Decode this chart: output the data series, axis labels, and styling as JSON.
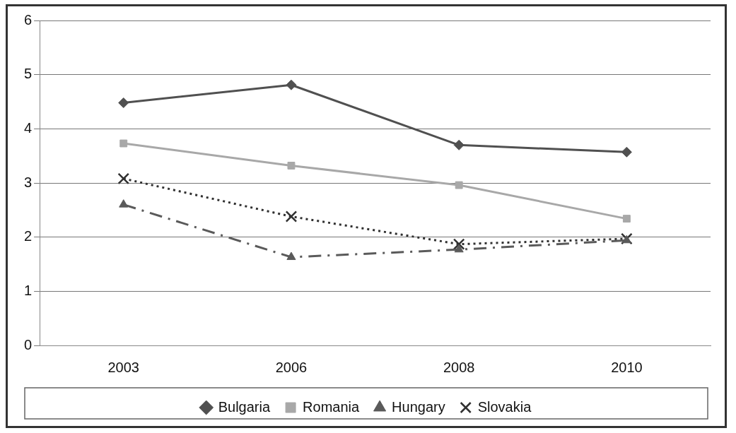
{
  "chart_data": {
    "type": "line",
    "categories": [
      "2003",
      "2006",
      "2008",
      "2010"
    ],
    "series": [
      {
        "name": "Bulgaria",
        "color": "#505050",
        "values": [
          4.48,
          4.81,
          3.7,
          3.57
        ],
        "marker": "diamond",
        "line_style": "solid"
      },
      {
        "name": "Romania",
        "color": "#a8a8a8",
        "values": [
          3.73,
          3.32,
          2.96,
          2.34
        ],
        "marker": "square",
        "line_style": "solid"
      },
      {
        "name": "Hungary",
        "color": "#5a5a5a",
        "values": [
          2.6,
          1.63,
          1.77,
          1.94
        ],
        "marker": "triangle",
        "line_style": "dashed"
      },
      {
        "name": "Slovakia",
        "color": "#303030",
        "values": [
          3.08,
          2.38,
          1.87,
          1.97
        ],
        "marker": "cross",
        "line_style": "dotted"
      }
    ],
    "ylim": [
      0,
      6
    ],
    "yticks": [
      0,
      1,
      2,
      3,
      4,
      5,
      6
    ],
    "grid": "y",
    "legend": "bottom"
  }
}
